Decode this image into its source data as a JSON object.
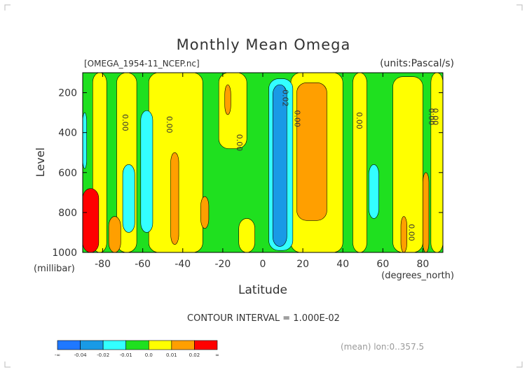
{
  "chart_data": {
    "type": "heatmap",
    "title": "Monthly Mean Omega",
    "file_label": "[OMEGA_1954-11_NCEP.nc]",
    "units_label": "(units:Pascal/s)",
    "xlabel": "Latitude",
    "x_units": "(degrees_north)",
    "ylabel": "Level",
    "y_units": "(millibar)",
    "xlim": [
      -90,
      90
    ],
    "ylim": [
      1000,
      100
    ],
    "x_ticks": [
      -80,
      -60,
      -40,
      -20,
      0,
      20,
      40,
      60,
      80
    ],
    "y_ticks": [
      200,
      400,
      600,
      800,
      1000
    ],
    "contour_interval_text": "CONTOUR INTERVAL = 1.000E-02",
    "footer_text": "(mean) lon:0..357.5",
    "contour_labels": [
      {
        "text": "0.00",
        "lat": -70,
        "level": 350
      },
      {
        "text": "0.00",
        "lat": -48,
        "level": 360
      },
      {
        "text": "0.00",
        "lat": -13,
        "level": 450
      },
      {
        "text": "-0.02",
        "lat": 10,
        "level": 220
      },
      {
        "text": "0.00",
        "lat": 16,
        "level": 330
      },
      {
        "text": "0.00",
        "lat": 47,
        "level": 340
      },
      {
        "text": "0.00",
        "lat": 83,
        "level": 320
      },
      {
        "text": "0.00",
        "lat": 85,
        "level": 320
      },
      {
        "text": "0.00",
        "lat": 73,
        "level": 900
      }
    ],
    "colorbar": {
      "colors": [
        "#1f78ff",
        "#199ae6",
        "#33ffff",
        "#1fe01f",
        "#ffff00",
        "#ff9f00",
        "#ff0000"
      ],
      "labels": [
        "-∞",
        "-0.04",
        "-0.02",
        "-0.01",
        "0.0",
        "0.01",
        "0.02",
        "∞"
      ]
    },
    "regions": {
      "base": "#1fe01f",
      "yellow": [
        {
          "x": [
            -85,
            -78
          ],
          "y": [
            100,
            1000
          ]
        },
        {
          "x": [
            -73,
            -63
          ],
          "y": [
            100,
            1000
          ]
        },
        {
          "x": [
            -57,
            -30
          ],
          "y": [
            100,
            1000
          ]
        },
        {
          "x": [
            -22,
            -8
          ],
          "y": [
            100,
            480
          ]
        },
        {
          "x": [
            -12,
            -4
          ],
          "y": [
            830,
            1000
          ]
        },
        {
          "x": [
            14,
            40
          ],
          "y": [
            100,
            1000
          ]
        },
        {
          "x": [
            45,
            52
          ],
          "y": [
            100,
            1000
          ]
        },
        {
          "x": [
            65,
            80
          ],
          "y": [
            120,
            1000
          ]
        },
        {
          "x": [
            84,
            90
          ],
          "y": [
            100,
            1000
          ]
        }
      ],
      "orange": [
        {
          "x": [
            17,
            32
          ],
          "y": [
            150,
            840
          ]
        },
        {
          "x": [
            -46,
            -42
          ],
          "y": [
            500,
            960
          ]
        },
        {
          "x": [
            -31,
            -27
          ],
          "y": [
            720,
            880
          ]
        },
        {
          "x": [
            -77,
            -71
          ],
          "y": [
            820,
            1000
          ]
        },
        {
          "x": [
            -19,
            -16
          ],
          "y": [
            160,
            310
          ]
        },
        {
          "x": [
            69,
            72
          ],
          "y": [
            820,
            1000
          ]
        },
        {
          "x": [
            80,
            83
          ],
          "y": [
            600,
            1000
          ]
        }
      ],
      "red": [
        {
          "x": [
            -90,
            -82
          ],
          "y": [
            680,
            1000
          ]
        }
      ],
      "cyan": [
        {
          "x": [
            -61,
            -55
          ],
          "y": [
            290,
            900
          ]
        },
        {
          "x": [
            -70,
            -64
          ],
          "y": [
            560,
            900
          ]
        },
        {
          "x": [
            -90,
            -88
          ],
          "y": [
            300,
            580
          ]
        },
        {
          "x": [
            3,
            15
          ],
          "y": [
            130,
            990
          ]
        },
        {
          "x": [
            53,
            58
          ],
          "y": [
            560,
            830
          ]
        }
      ],
      "blue": [
        {
          "x": [
            5,
            12
          ],
          "y": [
            160,
            970
          ]
        }
      ]
    }
  }
}
